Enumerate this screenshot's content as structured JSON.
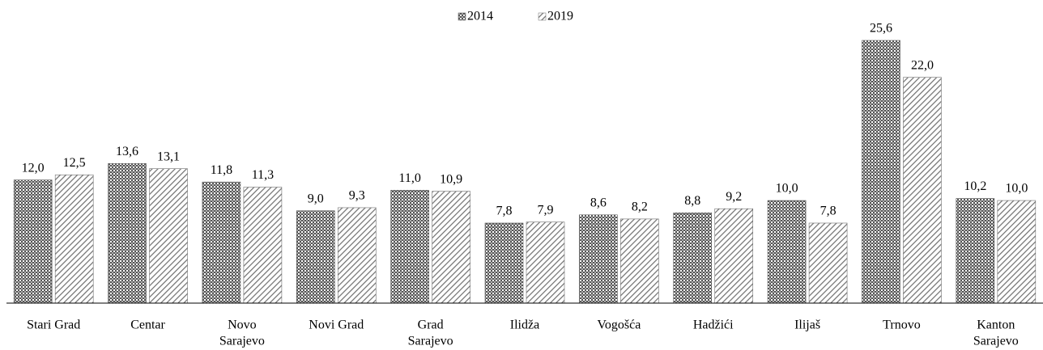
{
  "chart_data": {
    "type": "bar",
    "categories": [
      [
        "Stari Grad"
      ],
      [
        "Centar"
      ],
      [
        "Novo",
        "Sarajevo"
      ],
      [
        "Novi Grad"
      ],
      [
        "Grad",
        "Sarajevo"
      ],
      [
        "Ilidža"
      ],
      [
        "Vogošća"
      ],
      [
        "Hadžići"
      ],
      [
        "Ilijaš"
      ],
      [
        "Trnovo"
      ],
      [
        "Kanton",
        "Sarajevo"
      ]
    ],
    "series": [
      {
        "name": "2014",
        "color": "#555555",
        "pattern": "dots",
        "values": [
          12.0,
          13.6,
          11.8,
          9.0,
          11.0,
          7.8,
          8.6,
          8.8,
          10.0,
          25.6,
          10.2
        ],
        "value_labels": [
          "12,0",
          "13,6",
          "11,8",
          "9,0",
          "11,0",
          "7,8",
          "8,6",
          "8,8",
          "10,0",
          "25,6",
          "10,2"
        ]
      },
      {
        "name": "2019",
        "color": "#6e6e6e",
        "pattern": "hatch",
        "values": [
          12.5,
          13.1,
          11.3,
          9.3,
          10.9,
          7.9,
          8.2,
          9.2,
          7.8,
          22.0,
          10.0
        ],
        "value_labels": [
          "12,5",
          "13,1",
          "11,3",
          "9,3",
          "10,9",
          "7,9",
          "8,2",
          "9,2",
          "7,8",
          "22,0",
          "10,0"
        ]
      }
    ],
    "legend": "top"
  }
}
